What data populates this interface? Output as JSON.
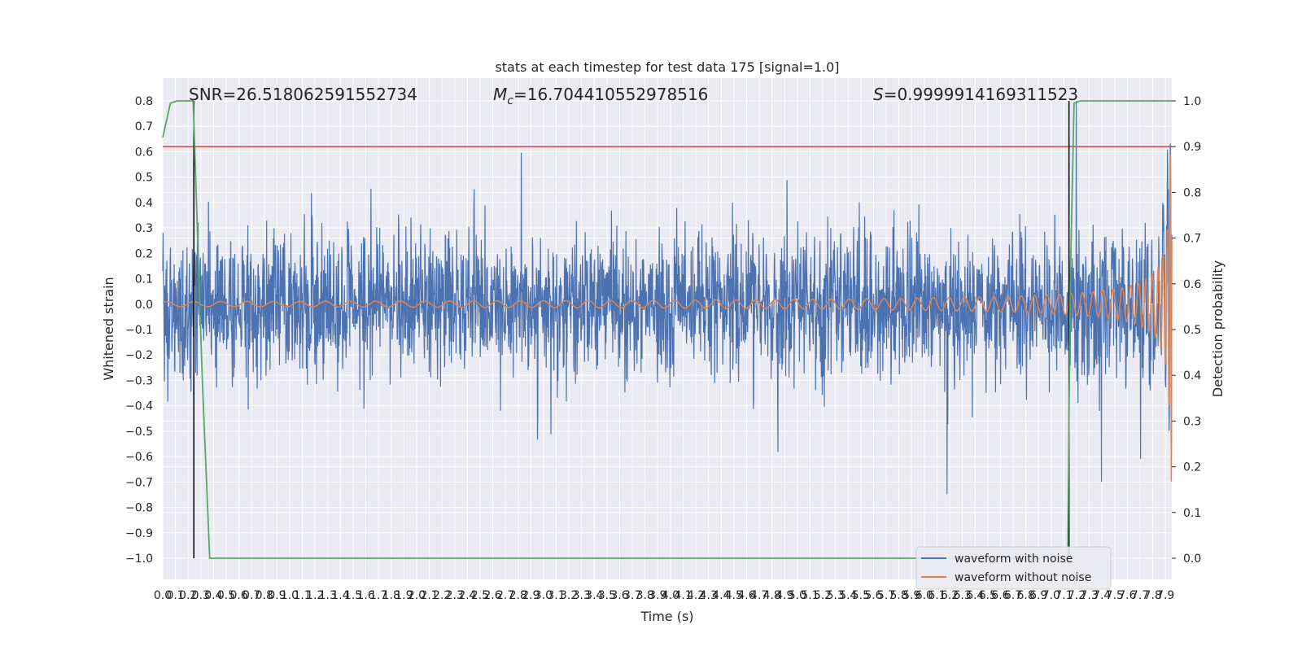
{
  "chart_data": {
    "type": "line",
    "title": "stats at each timestep for test data 175 [signal=1.0]",
    "xlabel": "Time (s)",
    "ylabel": "Whitened strain",
    "ylabel_right": "Detection probability",
    "xlim": [
      0.0,
      7.95
    ],
    "ylim": [
      -1.0,
      0.8
    ],
    "ylim_right": [
      0.0,
      1.0
    ],
    "grid": true,
    "legend_position": "lower-right",
    "annotations": {
      "snr": "SNR=26.518062591552734",
      "mc_symbol": "M",
      "mc_sub": "c",
      "mc_value": "=16.704410552978516",
      "s_symbol": "S",
      "s_value": "=0.9999914169311523"
    },
    "x_tick_labels": [
      "0.0",
      "0.1",
      "0.2",
      "0.3",
      "0.4",
      "0.5",
      "0.6",
      "0.7",
      "0.8",
      "0.9",
      "1.0",
      "1.1",
      "1.2",
      "1.3",
      "1.4",
      "1.5",
      "1.6",
      "1.7",
      "1.8",
      "1.9",
      "2.0",
      "2.1",
      "2.2",
      "2.3",
      "2.4",
      "2.5",
      "2.6",
      "2.7",
      "2.8",
      "2.9",
      "3.0",
      "3.1",
      "3.2",
      "3.3",
      "3.4",
      "3.5",
      "3.6",
      "3.7",
      "3.8",
      "3.9",
      "4.0",
      "4.1",
      "4.2",
      "4.3",
      "4.4",
      "4.5",
      "4.6",
      "4.7",
      "4.8",
      "4.9",
      "5.0",
      "5.1",
      "5.2",
      "5.3",
      "5.4",
      "5.5",
      "5.6",
      "5.7",
      "5.8",
      "5.9",
      "6.0",
      "6.1",
      "6.2",
      "6.3",
      "6.4",
      "6.5",
      "6.6",
      "6.7",
      "6.8",
      "6.9",
      "7.0",
      "7.1",
      "7.2",
      "7.3",
      "7.4",
      "7.5",
      "7.6",
      "7.7",
      "7.8",
      "7.9"
    ],
    "y_tick_labels": [
      "0.8",
      "0.7",
      "0.6",
      "0.5",
      "0.4",
      "0.3",
      "0.2",
      "0.1",
      "0.0",
      "−0.1",
      "−0.2",
      "−0.3",
      "−0.4",
      "−0.5",
      "−0.6",
      "−0.7",
      "−0.8",
      "−0.9",
      "−1.0"
    ],
    "y_right_tick_labels": [
      "1.0",
      "0.9",
      "0.8",
      "0.7",
      "0.6",
      "0.5",
      "0.4",
      "0.3",
      "0.2",
      "0.1",
      "0.0"
    ],
    "series": [
      {
        "name": "waveform with noise",
        "color": "#4c72b0",
        "noise_std": 0.14
      },
      {
        "name": "waveform without noise",
        "color": "#dd8452",
        "base_amplitude": 0.01,
        "final_amplitude": 0.7,
        "merger_time": 7.95
      }
    ],
    "detection_probability": {
      "color": "#55a868",
      "x": [
        0.0,
        0.06,
        0.11,
        0.24,
        0.31,
        0.37,
        7.13,
        7.15,
        7.18,
        7.23,
        7.28,
        7.95
      ],
      "y": [
        0.92,
        0.995,
        1.0,
        1.0,
        0.4,
        0.0,
        0.0,
        0.6,
        0.995,
        1.0,
        1.0,
        1.0
      ]
    },
    "threshold": {
      "color": "#c44e52",
      "value": 0.9
    },
    "vertical_markers": {
      "color": "#000000",
      "x": [
        0.245,
        7.14
      ]
    }
  }
}
